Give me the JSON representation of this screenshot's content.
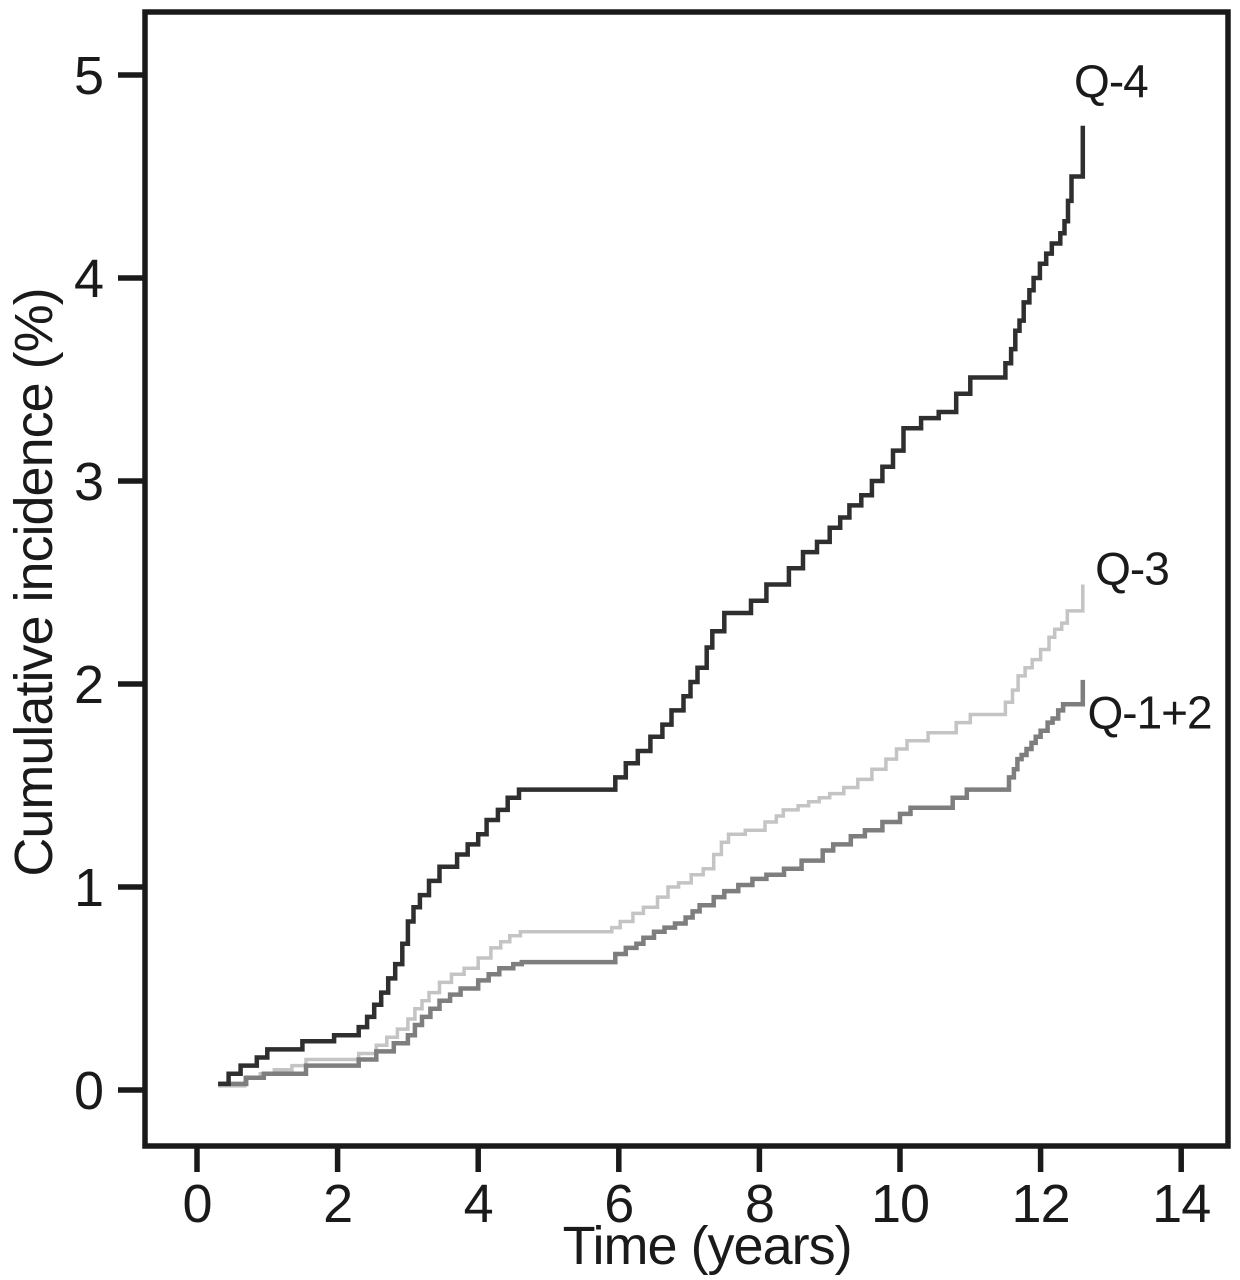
{
  "figure": {
    "background": "#ffffff",
    "frame_color": "#1a1a1a"
  },
  "chart_data": {
    "type": "line",
    "subtype": "step-cumulative-incidence",
    "title": "",
    "xlabel": "Time (years)",
    "ylabel": "Cumulative incidence (%)",
    "xlim": [
      0,
      14
    ],
    "ylim": [
      0,
      5
    ],
    "x_ticks": [
      0,
      2,
      4,
      6,
      8,
      10,
      12,
      14
    ],
    "y_ticks": [
      0,
      1,
      2,
      3,
      4,
      5
    ],
    "grid": false,
    "legend_position": "end-of-line-labels",
    "series": [
      {
        "name": "Q-3",
        "label": "Q-3",
        "color": "#c4c4c4",
        "stroke_width": 3.5,
        "label_x": 13.3,
        "label_y": 2.57,
        "points": [
          [
            0.3,
            0.02
          ],
          [
            0.68,
            0.06
          ],
          [
            0.9,
            0.08
          ],
          [
            1.1,
            0.1
          ],
          [
            1.35,
            0.12
          ],
          [
            1.55,
            0.15
          ],
          [
            2.3,
            0.18
          ],
          [
            2.55,
            0.22
          ],
          [
            2.7,
            0.26
          ],
          [
            2.85,
            0.3
          ],
          [
            3.0,
            0.35
          ],
          [
            3.1,
            0.4
          ],
          [
            3.2,
            0.44
          ],
          [
            3.3,
            0.48
          ],
          [
            3.45,
            0.53
          ],
          [
            3.62,
            0.57
          ],
          [
            3.8,
            0.6
          ],
          [
            4.0,
            0.65
          ],
          [
            4.18,
            0.7
          ],
          [
            4.32,
            0.73
          ],
          [
            4.45,
            0.76
          ],
          [
            4.6,
            0.78
          ],
          [
            5.9,
            0.8
          ],
          [
            6.02,
            0.83
          ],
          [
            6.2,
            0.87
          ],
          [
            6.35,
            0.9
          ],
          [
            6.55,
            0.95
          ],
          [
            6.7,
            1.0
          ],
          [
            6.85,
            1.02
          ],
          [
            7.03,
            1.06
          ],
          [
            7.2,
            1.09
          ],
          [
            7.35,
            1.16
          ],
          [
            7.46,
            1.22
          ],
          [
            7.56,
            1.26
          ],
          [
            7.8,
            1.28
          ],
          [
            8.08,
            1.32
          ],
          [
            8.24,
            1.35
          ],
          [
            8.34,
            1.38
          ],
          [
            8.55,
            1.4
          ],
          [
            8.7,
            1.42
          ],
          [
            8.85,
            1.44
          ],
          [
            9.0,
            1.46
          ],
          [
            9.2,
            1.49
          ],
          [
            9.4,
            1.53
          ],
          [
            9.6,
            1.58
          ],
          [
            9.8,
            1.63
          ],
          [
            9.95,
            1.68
          ],
          [
            10.1,
            1.72
          ],
          [
            10.4,
            1.76
          ],
          [
            10.8,
            1.81
          ],
          [
            11.0,
            1.85
          ],
          [
            11.5,
            1.91
          ],
          [
            11.6,
            1.97
          ],
          [
            11.68,
            2.04
          ],
          [
            11.78,
            2.08
          ],
          [
            11.88,
            2.12
          ],
          [
            12.0,
            2.17
          ],
          [
            12.12,
            2.23
          ],
          [
            12.2,
            2.27
          ],
          [
            12.3,
            2.3
          ],
          [
            12.38,
            2.36
          ],
          [
            12.6,
            2.49
          ]
        ]
      },
      {
        "name": "Q-1+2",
        "label": "Q-1+2",
        "color": "#7e7e7e",
        "stroke_width": 4.5,
        "label_x": 13.55,
        "label_y": 1.86,
        "points": [
          [
            0.3,
            0.03
          ],
          [
            0.7,
            0.06
          ],
          [
            0.95,
            0.08
          ],
          [
            1.55,
            0.12
          ],
          [
            2.3,
            0.15
          ],
          [
            2.55,
            0.19
          ],
          [
            2.8,
            0.23
          ],
          [
            3.0,
            0.27
          ],
          [
            3.1,
            0.32
          ],
          [
            3.2,
            0.36
          ],
          [
            3.32,
            0.4
          ],
          [
            3.45,
            0.44
          ],
          [
            3.6,
            0.47
          ],
          [
            3.75,
            0.5
          ],
          [
            4.0,
            0.54
          ],
          [
            4.15,
            0.57
          ],
          [
            4.3,
            0.6
          ],
          [
            4.5,
            0.62
          ],
          [
            4.62,
            0.63
          ],
          [
            5.95,
            0.67
          ],
          [
            6.1,
            0.7
          ],
          [
            6.25,
            0.72
          ],
          [
            6.35,
            0.75
          ],
          [
            6.5,
            0.78
          ],
          [
            6.65,
            0.8
          ],
          [
            6.8,
            0.82
          ],
          [
            6.95,
            0.85
          ],
          [
            7.05,
            0.88
          ],
          [
            7.15,
            0.91
          ],
          [
            7.35,
            0.95
          ],
          [
            7.5,
            0.98
          ],
          [
            7.7,
            1.01
          ],
          [
            7.9,
            1.04
          ],
          [
            8.1,
            1.06
          ],
          [
            8.35,
            1.09
          ],
          [
            8.6,
            1.13
          ],
          [
            8.9,
            1.18
          ],
          [
            9.05,
            1.21
          ],
          [
            9.3,
            1.25
          ],
          [
            9.5,
            1.28
          ],
          [
            9.75,
            1.32
          ],
          [
            10.0,
            1.36
          ],
          [
            10.15,
            1.39
          ],
          [
            10.75,
            1.44
          ],
          [
            10.95,
            1.48
          ],
          [
            11.55,
            1.54
          ],
          [
            11.62,
            1.58
          ],
          [
            11.67,
            1.63
          ],
          [
            11.73,
            1.65
          ],
          [
            11.8,
            1.68
          ],
          [
            11.87,
            1.71
          ],
          [
            11.93,
            1.74
          ],
          [
            12.0,
            1.77
          ],
          [
            12.1,
            1.81
          ],
          [
            12.17,
            1.83
          ],
          [
            12.25,
            1.87
          ],
          [
            12.32,
            1.9
          ],
          [
            12.6,
            2.02
          ]
        ]
      },
      {
        "name": "Q-4",
        "label": "Q-4",
        "color": "#2f2f2f",
        "stroke_width": 4.5,
        "label_x": 13.0,
        "label_y": 4.97,
        "points": [
          [
            0.3,
            0.03
          ],
          [
            0.45,
            0.08
          ],
          [
            0.62,
            0.12
          ],
          [
            0.85,
            0.16
          ],
          [
            1.0,
            0.2
          ],
          [
            1.5,
            0.24
          ],
          [
            1.95,
            0.27
          ],
          [
            2.3,
            0.31
          ],
          [
            2.42,
            0.36
          ],
          [
            2.52,
            0.42
          ],
          [
            2.62,
            0.48
          ],
          [
            2.72,
            0.55
          ],
          [
            2.82,
            0.62
          ],
          [
            2.92,
            0.72
          ],
          [
            3.0,
            0.83
          ],
          [
            3.08,
            0.9
          ],
          [
            3.17,
            0.96
          ],
          [
            3.3,
            1.03
          ],
          [
            3.45,
            1.1
          ],
          [
            3.7,
            1.16
          ],
          [
            3.85,
            1.21
          ],
          [
            4.0,
            1.26
          ],
          [
            4.12,
            1.33
          ],
          [
            4.28,
            1.38
          ],
          [
            4.42,
            1.44
          ],
          [
            4.58,
            1.48
          ],
          [
            5.95,
            1.54
          ],
          [
            6.1,
            1.61
          ],
          [
            6.27,
            1.67
          ],
          [
            6.45,
            1.74
          ],
          [
            6.62,
            1.8
          ],
          [
            6.75,
            1.87
          ],
          [
            6.92,
            1.94
          ],
          [
            7.02,
            2.01
          ],
          [
            7.12,
            2.08
          ],
          [
            7.25,
            2.18
          ],
          [
            7.33,
            2.26
          ],
          [
            7.5,
            2.35
          ],
          [
            7.88,
            2.41
          ],
          [
            8.1,
            2.49
          ],
          [
            8.42,
            2.57
          ],
          [
            8.62,
            2.65
          ],
          [
            8.82,
            2.7
          ],
          [
            9.0,
            2.77
          ],
          [
            9.15,
            2.82
          ],
          [
            9.28,
            2.88
          ],
          [
            9.45,
            2.93
          ],
          [
            9.6,
            3.0
          ],
          [
            9.75,
            3.07
          ],
          [
            9.9,
            3.15
          ],
          [
            10.05,
            3.26
          ],
          [
            10.3,
            3.31
          ],
          [
            10.55,
            3.34
          ],
          [
            10.8,
            3.43
          ],
          [
            11.0,
            3.51
          ],
          [
            11.5,
            3.58
          ],
          [
            11.58,
            3.65
          ],
          [
            11.64,
            3.74
          ],
          [
            11.7,
            3.79
          ],
          [
            11.76,
            3.88
          ],
          [
            11.84,
            3.94
          ],
          [
            11.9,
            4.0
          ],
          [
            11.99,
            4.07
          ],
          [
            12.08,
            4.12
          ],
          [
            12.16,
            4.17
          ],
          [
            12.28,
            4.22
          ],
          [
            12.34,
            4.28
          ],
          [
            12.39,
            4.38
          ],
          [
            12.44,
            4.5
          ],
          [
            12.6,
            4.75
          ]
        ]
      }
    ]
  }
}
